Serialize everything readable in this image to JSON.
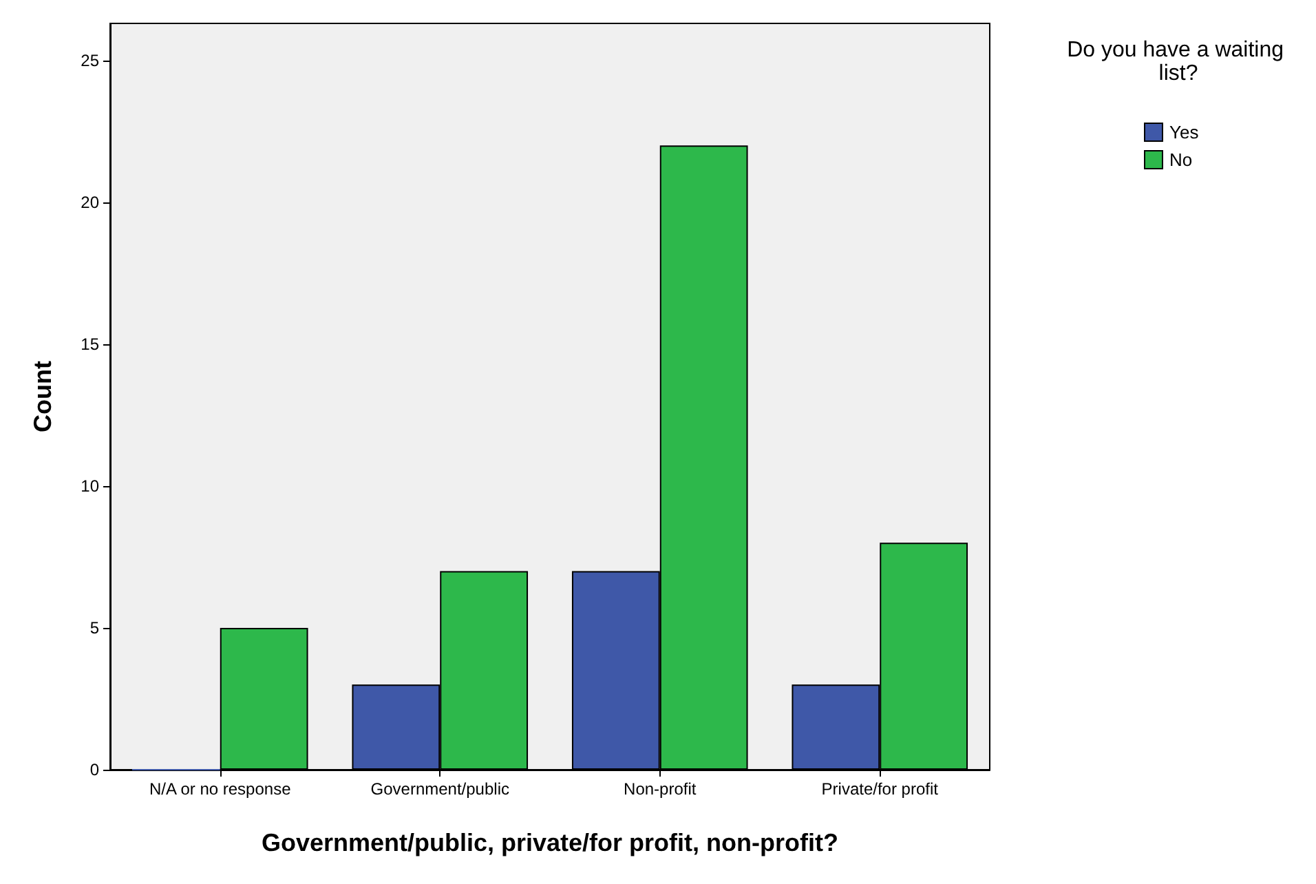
{
  "chart_data": {
    "type": "bar",
    "xlabel": "Government/public, private/for profit, non-profit?",
    "ylabel": "Count",
    "legend_title": "Do you have a waiting list?",
    "categories": [
      "N/A or no response",
      "Government/public",
      "Non-profit",
      "Private/for profit"
    ],
    "series": [
      {
        "name": "Yes",
        "color": "#3f58a8",
        "values": [
          0,
          3,
          7,
          3
        ]
      },
      {
        "name": "No",
        "color": "#2db84b",
        "values": [
          5,
          7,
          22,
          8
        ]
      }
    ],
    "ylim": [
      0,
      26.3
    ],
    "yticks": [
      0,
      5,
      10,
      15,
      20,
      25
    ],
    "grid": false,
    "legend": "top right"
  }
}
